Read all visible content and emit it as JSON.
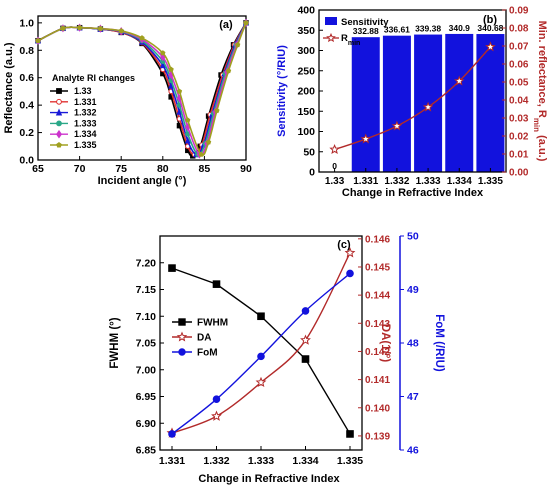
{
  "chart_data": [
    {
      "panel": "(a)",
      "type": "line",
      "xlabel": "Incident angle (°)",
      "ylabel": "Reflectance (a.u.)",
      "xlim": [
        65,
        90
      ],
      "ylim": [
        0.0,
        1.05
      ],
      "xticks": [
        "65",
        "70",
        "75",
        "80",
        "85",
        "90"
      ],
      "yticks": [
        "0.0",
        "0.2",
        "0.4",
        "0.6",
        "0.8",
        "1.0"
      ],
      "legend_title": "Analyte RI changes",
      "legend_position": "left",
      "series": [
        {
          "name": "1.33",
          "color": "#000000",
          "marker": "square",
          "x": [
            65,
            68,
            70,
            72.5,
            75,
            77.5,
            80,
            81,
            82,
            83,
            83.6,
            84.5,
            85.5,
            87,
            88.5,
            90
          ],
          "y": [
            0.87,
            0.96,
            0.965,
            0.955,
            0.93,
            0.85,
            0.63,
            0.46,
            0.25,
            0.07,
            0.03,
            0.1,
            0.32,
            0.62,
            0.84,
            1.0
          ]
        },
        {
          "name": "1.331",
          "color": "#e03030",
          "marker": "circle",
          "x": [
            65,
            68,
            70,
            72.5,
            75,
            77.5,
            80,
            81,
            82,
            83,
            83.8,
            84.7,
            85.7,
            87.2,
            88.6,
            90
          ],
          "y": [
            0.87,
            0.96,
            0.965,
            0.955,
            0.93,
            0.855,
            0.66,
            0.5,
            0.3,
            0.1,
            0.04,
            0.11,
            0.33,
            0.62,
            0.84,
            1.0
          ]
        },
        {
          "name": "1.332",
          "color": "#1a1ad8",
          "marker": "triangle",
          "x": [
            65,
            68,
            70,
            72.5,
            75,
            77.5,
            80,
            81,
            82,
            83,
            84,
            84.9,
            85.9,
            87.4,
            88.7,
            90
          ],
          "y": [
            0.87,
            0.96,
            0.965,
            0.955,
            0.935,
            0.86,
            0.69,
            0.54,
            0.35,
            0.14,
            0.04,
            0.11,
            0.33,
            0.63,
            0.84,
            1.0
          ]
        },
        {
          "name": "1.333",
          "color": "#2aa888",
          "marker": "circle",
          "x": [
            65,
            68,
            70,
            72.5,
            75,
            77.5,
            80,
            81,
            82,
            83,
            84.2,
            85.1,
            86.1,
            87.5,
            88.8,
            90
          ],
          "y": [
            0.87,
            0.96,
            0.965,
            0.957,
            0.937,
            0.87,
            0.72,
            0.58,
            0.4,
            0.19,
            0.04,
            0.12,
            0.34,
            0.63,
            0.84,
            1.0
          ]
        },
        {
          "name": "1.334",
          "color": "#cc33cc",
          "marker": "diamond",
          "x": [
            65,
            68,
            70,
            72.5,
            75,
            77.5,
            80,
            81,
            82,
            83,
            84.4,
            85.3,
            86.3,
            87.7,
            88.9,
            90
          ],
          "y": [
            0.87,
            0.96,
            0.965,
            0.958,
            0.94,
            0.88,
            0.75,
            0.62,
            0.45,
            0.24,
            0.04,
            0.12,
            0.35,
            0.64,
            0.84,
            1.0
          ]
        },
        {
          "name": "1.335",
          "color": "#a0a020",
          "marker": "pentagon",
          "x": [
            65,
            68,
            70,
            72.5,
            75,
            77.5,
            80,
            81,
            82,
            83,
            84.6,
            85.5,
            86.5,
            87.9,
            89,
            90
          ],
          "y": [
            0.87,
            0.96,
            0.965,
            0.958,
            0.942,
            0.89,
            0.78,
            0.66,
            0.5,
            0.29,
            0.04,
            0.13,
            0.36,
            0.65,
            0.84,
            1.0
          ]
        }
      ]
    },
    {
      "panel": "(b)",
      "type": "bar",
      "xlabel": "Change in Refractive Index",
      "ylabel": "Sensitivity (°/RIU)",
      "ylabel2": "Min. reflectance, R",
      "ylabel2_sub": "min",
      "ylabel2_unit": " (a.u.)",
      "categories": [
        "1.33",
        "1.331",
        "1.332",
        "1.333",
        "1.334",
        "1.335"
      ],
      "ylim": [
        0,
        400
      ],
      "yticks": [
        "0",
        "50",
        "100",
        "150",
        "200",
        "250",
        "300",
        "350",
        "400"
      ],
      "ylim2": [
        0.0,
        0.09
      ],
      "yticks2": [
        "0.00",
        "0.01",
        "0.02",
        "0.03",
        "0.04",
        "0.05",
        "0.06",
        "0.07",
        "0.08",
        "0.09"
      ],
      "legend_position": "top-left",
      "series": [
        {
          "name": "Sensitivity",
          "kind": "bar",
          "axis": "left",
          "color": "#1212dd",
          "values": [
            0,
            332.88,
            336.61,
            339.38,
            340.9,
            340.68
          ],
          "labels": [
            "0",
            "332.88",
            "336.61",
            "339.38",
            "340.9",
            "340.68"
          ]
        },
        {
          "name": "R",
          "name_sub": "min",
          "kind": "line",
          "axis": "right",
          "color": "#b22a2a",
          "values": [
            0.0125,
            0.0183,
            0.0255,
            0.036,
            0.0505,
            0.0695
          ]
        }
      ]
    },
    {
      "panel": "(c)",
      "type": "line",
      "xlabel": "Change in Refractive Index",
      "ylabel": "FWHM (°)",
      "ylabel2": "DA(1/°)",
      "ylabel3": "FoM (/RIU)",
      "categories": [
        "1.331",
        "1.332",
        "1.333",
        "1.334",
        "1.335"
      ],
      "ylim": [
        6.85,
        7.25
      ],
      "yticks": [
        "6.85",
        "6.90",
        "6.95",
        "7.00",
        "7.05",
        "7.10",
        "7.15",
        "7.20"
      ],
      "ylim2": [
        0.1385,
        0.1461
      ],
      "yticks2": [
        "0.139",
        "0.140",
        "0.141",
        "0.142",
        "0.143",
        "0.144",
        "0.145",
        "0.146"
      ],
      "ylim3": [
        46,
        50
      ],
      "yticks3": [
        "46",
        "47",
        "48",
        "49",
        "50"
      ],
      "legend_position": "left",
      "series": [
        {
          "name": "FWHM",
          "axis": "left",
          "color": "#000000",
          "marker": "square",
          "values": [
            7.19,
            7.16,
            7.1,
            7.02,
            6.88
          ]
        },
        {
          "name": "DA",
          "axis": "right",
          "color": "#b22a2a",
          "marker": "star",
          "values": [
            0.1391,
            0.1397,
            0.1409,
            0.1424,
            0.1455
          ]
        },
        {
          "name": "FoM",
          "axis": "far-right",
          "color": "#1212dd",
          "marker": "circle",
          "values": [
            46.3,
            46.95,
            47.75,
            48.6,
            49.3
          ]
        }
      ]
    }
  ]
}
